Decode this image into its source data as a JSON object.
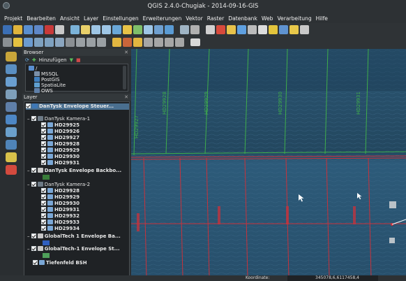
{
  "window": {
    "title": "QGIS 2.4.0-Chugiak - 2014-09-16-GIS"
  },
  "menu": [
    "Projekt",
    "Bearbeiten",
    "Ansicht",
    "Layer",
    "Einstellungen",
    "Erweiterungen",
    "Vektor",
    "Raster",
    "Datenbank",
    "Web",
    "Verarbeitung",
    "Hilfe"
  ],
  "browser": {
    "title": "Browser",
    "add_label": "Hinzufügen",
    "items": [
      "/",
      "MSSQL",
      "PostGIS",
      "SpatiaLite",
      "OWS"
    ]
  },
  "layers": {
    "title": "Layer",
    "items": [
      {
        "label": "DanTysk Envelope Steuer...",
        "bold": true,
        "level": 0,
        "selected": true
      },
      {
        "label": "DanTysk Kamera-1",
        "bold": false,
        "level": 0
      },
      {
        "label": "HD29925",
        "bold": true,
        "level": 1
      },
      {
        "label": "HD29926",
        "bold": true,
        "level": 1
      },
      {
        "label": "HD29927",
        "bold": true,
        "level": 1
      },
      {
        "label": "HD29928",
        "bold": true,
        "level": 1
      },
      {
        "label": "HD29929",
        "bold": true,
        "level": 1
      },
      {
        "label": "HD29930",
        "bold": true,
        "level": 1
      },
      {
        "label": "HD29931",
        "bold": true,
        "level": 1
      },
      {
        "label": "DanTysk Envelope Backbo...",
        "bold": true,
        "level": 0
      },
      {
        "label": "DanTysk Kamera-2",
        "bold": false,
        "level": 0
      },
      {
        "label": "HD29928",
        "bold": true,
        "level": 1
      },
      {
        "label": "HD29929",
        "bold": true,
        "level": 1
      },
      {
        "label": "HD29930",
        "bold": true,
        "level": 1
      },
      {
        "label": "HD29931",
        "bold": true,
        "level": 1
      },
      {
        "label": "HD29932",
        "bold": true,
        "level": 1
      },
      {
        "label": "HD29933",
        "bold": true,
        "level": 1
      },
      {
        "label": "HD29934",
        "bold": true,
        "level": 1
      },
      {
        "label": "GlobalTech 1 Envelope Ba...",
        "bold": true,
        "level": 0
      },
      {
        "label": "GlobalTech-1 Envelope St...",
        "bold": true,
        "level": 0
      },
      {
        "label": "Tiefenfeld BSH",
        "bold": true,
        "level": 0
      }
    ]
  },
  "map": {
    "labels_top": [
      "HD29927",
      "HD29928",
      "HD29929",
      "HD29930",
      "HD29931"
    ]
  },
  "status": {
    "coord_label": "Koordinate:",
    "coord_value": "345078,6,6117458,4"
  },
  "colors": {
    "water": "#2a4f69",
    "green": "#3fae4a",
    "red": "#c9323b",
    "panel": "#2b2f32",
    "selected": "#4a6f8f"
  }
}
